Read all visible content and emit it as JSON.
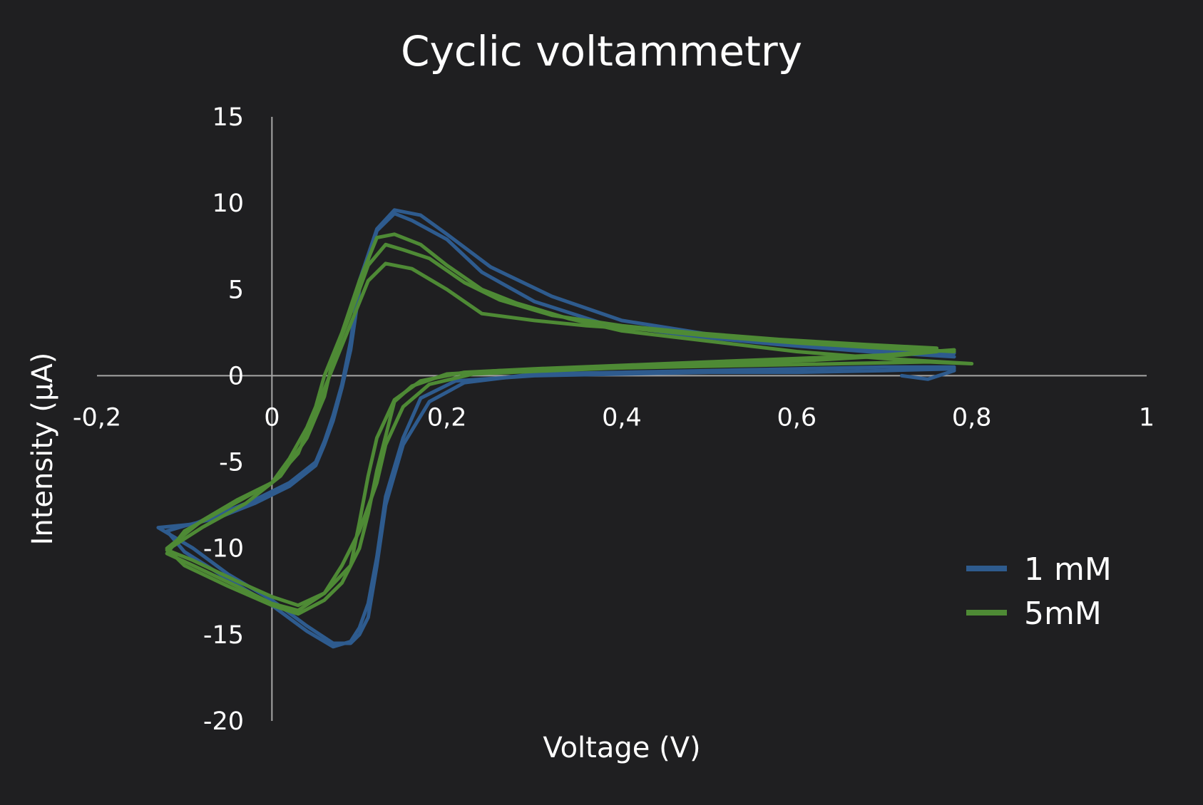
{
  "chart_data": {
    "type": "line",
    "title": "Cyclic voltammetry",
    "xlabel": "Voltage (V)",
    "ylabel": "Intensity (µA)",
    "xlim": [
      -0.2,
      1
    ],
    "ylim": [
      -20,
      15
    ],
    "xticks": [
      -0.2,
      0,
      0.2,
      0.4,
      0.6,
      0.8,
      1
    ],
    "xtick_labels": [
      "-0,2",
      "0",
      "0,2",
      "0,4",
      "0,6",
      "0,8",
      "1"
    ],
    "yticks": [
      15,
      10,
      5,
      0,
      -5,
      -10,
      -15,
      -20
    ],
    "ytick_labels": [
      "15",
      "10",
      "5",
      "0",
      "-5",
      "-10",
      "-15",
      "-20"
    ],
    "grid": false,
    "legend_position": "right",
    "series": [
      {
        "name": "1 mM",
        "color": "#2e5b8e",
        "cycles": [
          {
            "x": [
              0.78,
              0.7,
              0.6,
              0.5,
              0.4,
              0.32,
              0.25,
              0.2,
              0.17,
              0.14,
              0.12,
              0.1,
              0.09,
              0.08,
              0.07,
              0.06,
              0.05,
              0.02,
              -0.02,
              -0.06,
              -0.09,
              -0.13,
              -0.09,
              -0.05,
              0.0,
              0.04,
              0.07,
              0.09,
              0.1,
              0.11,
              0.12,
              0.13,
              0.15,
              0.18,
              0.22,
              0.3,
              0.4,
              0.5,
              0.6,
              0.7,
              0.78
            ],
            "y": [
              1.3,
              1.5,
              1.9,
              2.4,
              3.2,
              4.6,
              6.3,
              8.2,
              9.3,
              9.6,
              8.5,
              5.5,
              2.0,
              -0.5,
              -2.3,
              -3.8,
              -5.0,
              -6.2,
              -7.2,
              -8.0,
              -8.6,
              -8.8,
              -10.0,
              -11.5,
              -13.0,
              -14.5,
              -15.5,
              -15.5,
              -15.0,
              -14.0,
              -11.0,
              -7.5,
              -4.0,
              -1.5,
              -0.4,
              0.1,
              0.2,
              0.3,
              0.4,
              0.5,
              0.5
            ]
          },
          {
            "x": [
              0.78,
              0.68,
              0.58,
              0.48,
              0.38,
              0.3,
              0.24,
              0.2,
              0.16,
              0.14,
              0.12,
              0.1,
              0.09,
              0.08,
              0.07,
              0.06,
              0.05,
              0.02,
              -0.02,
              -0.06,
              -0.1,
              -0.12,
              -0.1,
              -0.05,
              0.0,
              0.04,
              0.07,
              0.09,
              0.1,
              0.11,
              0.12,
              0.13,
              0.15,
              0.17,
              0.21,
              0.3,
              0.4,
              0.5,
              0.6,
              0.7,
              0.78
            ],
            "y": [
              1.1,
              1.4,
              1.8,
              2.3,
              3.0,
              4.3,
              6.0,
              7.9,
              9.0,
              9.4,
              8.4,
              5.0,
              1.5,
              -0.7,
              -2.6,
              -4.0,
              -5.2,
              -6.4,
              -7.4,
              -8.2,
              -8.7,
              -9.0,
              -10.2,
              -11.8,
              -13.3,
              -14.8,
              -15.7,
              -15.4,
              -14.6,
              -13.2,
              -10.5,
              -7.0,
              -3.6,
              -1.3,
              -0.3,
              0.0,
              0.1,
              0.2,
              0.2,
              0.3,
              0.4
            ]
          },
          {
            "x": [
              0.72,
              0.75,
              0.78
            ],
            "y": [
              0.0,
              -0.2,
              0.3
            ]
          }
        ]
      },
      {
        "name": "5mM",
        "color": "#4e8a35",
        "cycles": [
          {
            "x": [
              0.8,
              0.7,
              0.6,
              0.5,
              0.4,
              0.34,
              0.28,
              0.24,
              0.2,
              0.17,
              0.14,
              0.12,
              0.1,
              0.08,
              0.06,
              0.05,
              0.04,
              0.02,
              0.0,
              -0.04,
              -0.08,
              -0.12,
              -0.1,
              -0.05,
              0.0,
              0.03,
              0.06,
              0.08,
              0.1,
              0.11,
              0.12,
              0.13,
              0.14,
              0.16,
              0.2,
              0.26,
              0.35,
              0.45,
              0.55,
              0.65,
              0.75,
              0.8
            ],
            "y": [
              0.7,
              1.0,
              1.4,
              2.0,
              2.6,
              3.3,
              4.2,
              5.0,
              6.4,
              7.6,
              8.2,
              8.0,
              5.5,
              2.5,
              0.0,
              -1.8,
              -3.0,
              -4.8,
              -6.2,
              -7.2,
              -8.4,
              -10.0,
              -11.0,
              -12.2,
              -13.3,
              -13.8,
              -13.0,
              -12.0,
              -10.0,
              -8.0,
              -5.5,
              -3.5,
              -1.5,
              -0.6,
              0.1,
              0.3,
              0.4,
              0.5,
              0.6,
              0.7,
              0.8,
              0.7
            ]
          },
          {
            "x": [
              0.78,
              0.7,
              0.6,
              0.5,
              0.42,
              0.36,
              0.3,
              0.24,
              0.2,
              0.16,
              0.13,
              0.11,
              0.09,
              0.07,
              0.05,
              0.03,
              0.0,
              -0.05,
              -0.1,
              -0.12,
              -0.09,
              -0.04,
              0.0,
              0.03,
              0.06,
              0.09,
              0.1,
              0.11,
              0.12,
              0.14,
              0.17,
              0.22,
              0.3,
              0.4,
              0.5,
              0.6,
              0.7,
              0.78
            ],
            "y": [
              1.4,
              1.6,
              1.9,
              2.3,
              2.7,
              2.9,
              3.2,
              3.6,
              5.0,
              6.2,
              6.5,
              5.5,
              3.0,
              0.5,
              -2.0,
              -4.5,
              -6.2,
              -7.6,
              -9.0,
              -10.3,
              -11.0,
              -12.2,
              -13.2,
              -13.6,
              -12.6,
              -11.0,
              -8.5,
              -5.8,
              -3.6,
              -1.4,
              -0.3,
              0.2,
              0.4,
              0.6,
              0.8,
              1.0,
              1.2,
              1.5
            ]
          },
          {
            "x": [
              0.76,
              0.68,
              0.58,
              0.48,
              0.4,
              0.32,
              0.26,
              0.22,
              0.18,
              0.15,
              0.13,
              0.11,
              0.09,
              0.07,
              0.06,
              0.04,
              0.01,
              -0.03,
              -0.08,
              -0.12,
              -0.09,
              -0.04,
              0.0,
              0.03,
              0.06,
              0.08,
              0.1,
              0.12,
              0.13,
              0.15,
              0.18,
              0.23,
              0.32,
              0.42,
              0.52,
              0.62,
              0.72,
              0.76
            ],
            "y": [
              1.6,
              1.8,
              2.1,
              2.5,
              2.9,
              3.5,
              4.4,
              5.4,
              6.8,
              7.3,
              7.6,
              6.4,
              3.6,
              1.0,
              -1.2,
              -3.6,
              -5.8,
              -7.4,
              -8.8,
              -10.1,
              -10.7,
              -11.9,
              -12.8,
              -13.3,
              -12.6,
              -11.0,
              -9.0,
              -6.2,
              -4.0,
              -1.8,
              -0.5,
              0.1,
              0.3,
              0.5,
              0.7,
              0.9,
              1.2,
              1.4
            ]
          }
        ]
      }
    ]
  }
}
